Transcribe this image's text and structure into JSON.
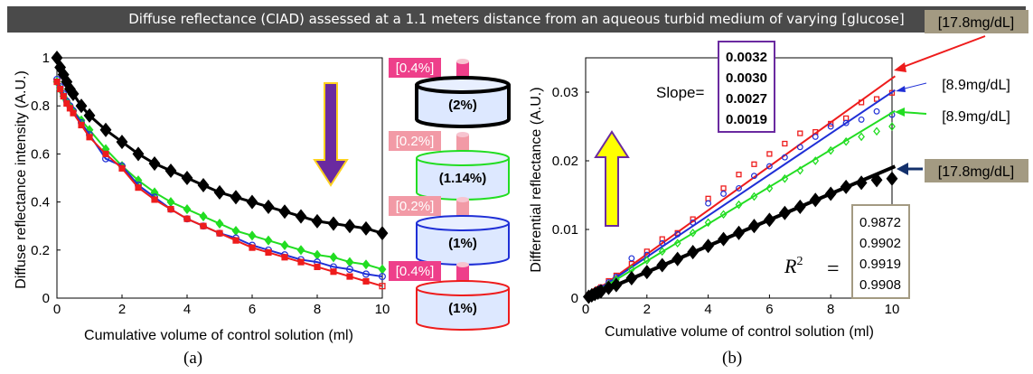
{
  "banner": "Diffuse reflectance (CIAD) assessed at a 1.1 meters distance from an aqueous turbid medium of varying [glucose]",
  "captions": {
    "a": "(a)",
    "b": "(b)"
  },
  "colors": {
    "black": "#000000",
    "green": "#22dd22",
    "blue": "#1f2fd6",
    "red": "#ee1c1c",
    "pink": "#ee3f8a",
    "lightpink": "#f29aa6",
    "purple": "#6a2aa0",
    "yellow": "#ffff00",
    "navy": "#13306b",
    "tan": "#a39a82"
  },
  "chart_data": [
    {
      "type": "line",
      "title": "",
      "xlabel": "Cumulative volume of control solution (ml)",
      "ylabel": "Diffuse reflectance intensity (A.U.)",
      "xlim": [
        0,
        10
      ],
      "ylim": [
        0,
        1
      ],
      "xticks": [
        "0",
        "2",
        "4",
        "6",
        "8",
        "10"
      ],
      "yticks": [
        "0",
        "0.2",
        "0.4",
        "0.6",
        "0.8",
        "1"
      ],
      "x": [
        0,
        0.1,
        0.2,
        0.3,
        0.4,
        0.5,
        0.75,
        1,
        1.5,
        2,
        2.5,
        3,
        3.5,
        4,
        4.5,
        5,
        5.5,
        6,
        6.5,
        7,
        7.5,
        8,
        8.5,
        9,
        9.5,
        10
      ],
      "series": [
        {
          "color": "black",
          "marker": "diamond",
          "values": [
            1.0,
            0.96,
            0.93,
            0.9,
            0.87,
            0.85,
            0.8,
            0.76,
            0.7,
            0.65,
            0.6,
            0.56,
            0.53,
            0.5,
            0.47,
            0.44,
            0.42,
            0.4,
            0.38,
            0.36,
            0.34,
            0.32,
            0.31,
            0.3,
            0.29,
            0.27
          ]
        },
        {
          "color": "green",
          "marker": "diamond",
          "values": [
            0.9,
            0.87,
            0.84,
            0.82,
            0.8,
            0.78,
            0.74,
            0.7,
            0.62,
            0.55,
            0.49,
            0.44,
            0.4,
            0.37,
            0.34,
            0.31,
            0.28,
            0.26,
            0.24,
            0.22,
            0.2,
            0.18,
            0.17,
            0.15,
            0.14,
            0.12
          ]
        },
        {
          "color": "blue",
          "marker": "circle",
          "values": [
            0.91,
            0.88,
            0.85,
            0.82,
            0.8,
            0.78,
            0.73,
            0.68,
            0.58,
            0.55,
            0.47,
            0.42,
            0.37,
            0.33,
            0.3,
            0.27,
            0.25,
            0.22,
            0.2,
            0.18,
            0.16,
            0.15,
            0.13,
            0.12,
            0.1,
            0.09
          ]
        },
        {
          "color": "red",
          "marker": "square",
          "values": [
            0.9,
            0.87,
            0.84,
            0.81,
            0.79,
            0.77,
            0.72,
            0.67,
            0.6,
            0.54,
            0.46,
            0.41,
            0.37,
            0.33,
            0.3,
            0.27,
            0.24,
            0.21,
            0.19,
            0.17,
            0.15,
            0.13,
            0.11,
            0.09,
            0.07,
            0.05
          ]
        }
      ],
      "arrow_color": "purple",
      "containers": [
        {
          "top_label": "[0.4%]",
          "top_label_color": "pink",
          "body_label": "(2%)",
          "ring_color": "black"
        },
        {
          "top_label": "[0.2%]",
          "top_label_color": "lightpink",
          "body_label": "(1.14%)",
          "ring_color": "green"
        },
        {
          "top_label": "[0.2%]",
          "top_label_color": "lightpink",
          "body_label": "(1%)",
          "ring_color": "blue"
        },
        {
          "top_label": "[0.4%]",
          "top_label_color": "pink",
          "body_label": "(1%)",
          "ring_color": "red"
        }
      ]
    },
    {
      "type": "scatter",
      "title": "",
      "xlabel": "Cumulative volume of control solution (ml)",
      "ylabel": "Differential reflectance (A.U.)",
      "xlim": [
        0,
        10
      ],
      "ylim": [
        0,
        0.035
      ],
      "xticks": [
        "0",
        "2",
        "4",
        "6",
        "8",
        "10"
      ],
      "yticks": [
        "0",
        "0.01",
        "0.02",
        "0.03"
      ],
      "x": [
        0.1,
        0.2,
        0.3,
        0.4,
        0.5,
        0.75,
        1,
        1.5,
        2,
        2.5,
        3,
        3.5,
        4,
        4.5,
        5,
        5.5,
        6,
        6.5,
        7,
        7.5,
        8,
        8.5,
        9,
        9.5,
        10
      ],
      "series": [
        {
          "color": "red",
          "marker": "square",
          "slope": 0.0032,
          "values": [
            0.0004,
            0.0007,
            0.001,
            0.0013,
            0.0016,
            0.0025,
            0.0033,
            0.005,
            0.0068,
            0.0086,
            0.0095,
            0.0115,
            0.0145,
            0.016,
            0.018,
            0.0195,
            0.021,
            0.0225,
            0.024,
            0.0242,
            0.0254,
            0.0262,
            0.0285,
            0.029,
            0.0299
          ]
        },
        {
          "color": "blue",
          "marker": "circle",
          "slope": 0.003,
          "values": [
            0.0003,
            0.0006,
            0.0009,
            0.0012,
            0.0015,
            0.0023,
            0.0031,
            0.0058,
            0.0063,
            0.008,
            0.0093,
            0.011,
            0.0138,
            0.0152,
            0.016,
            0.0178,
            0.0192,
            0.0205,
            0.022,
            0.0235,
            0.025,
            0.0255,
            0.026,
            0.0272,
            0.0267
          ]
        },
        {
          "color": "green",
          "marker": "diamond",
          "slope": 0.0027,
          "values": [
            0.0003,
            0.0005,
            0.0008,
            0.0011,
            0.0013,
            0.002,
            0.0027,
            0.0042,
            0.0055,
            0.0068,
            0.008,
            0.0095,
            0.011,
            0.0122,
            0.0136,
            0.0148,
            0.016,
            0.0174,
            0.0186,
            0.02,
            0.0215,
            0.0228,
            0.0235,
            0.0243,
            0.025
          ]
        },
        {
          "color": "black",
          "marker": "diamond",
          "slope": 0.0019,
          "values": [
            0.0002,
            0.0004,
            0.0006,
            0.0008,
            0.001,
            0.0015,
            0.0019,
            0.0029,
            0.0038,
            0.0048,
            0.0057,
            0.0067,
            0.0076,
            0.0086,
            0.0095,
            0.0105,
            0.0114,
            0.0124,
            0.0133,
            0.0143,
            0.0152,
            0.0162,
            0.0168,
            0.0172,
            0.0174
          ]
        }
      ],
      "slope_label": "Slope=",
      "slopes": [
        "0.0032",
        "0.0030",
        "0.0027",
        "0.0019"
      ],
      "r2_label_base": "R",
      "r2_sup": "2",
      "r2_eq": "=",
      "r2_values": [
        "0.9872",
        "0.9902",
        "0.9919",
        "0.9908"
      ],
      "annotations": [
        {
          "text": "[17.8mg/dL]",
          "color": "red",
          "boxed": true
        },
        {
          "text": "[8.9mg/dL]",
          "color": "blue",
          "boxed": false
        },
        {
          "text": "[8.9mg/dL]",
          "color": "green",
          "boxed": false
        },
        {
          "text": "[17.8mg/dL]",
          "color": "navy",
          "boxed": true
        }
      ],
      "arrow_color": "yellow"
    }
  ]
}
